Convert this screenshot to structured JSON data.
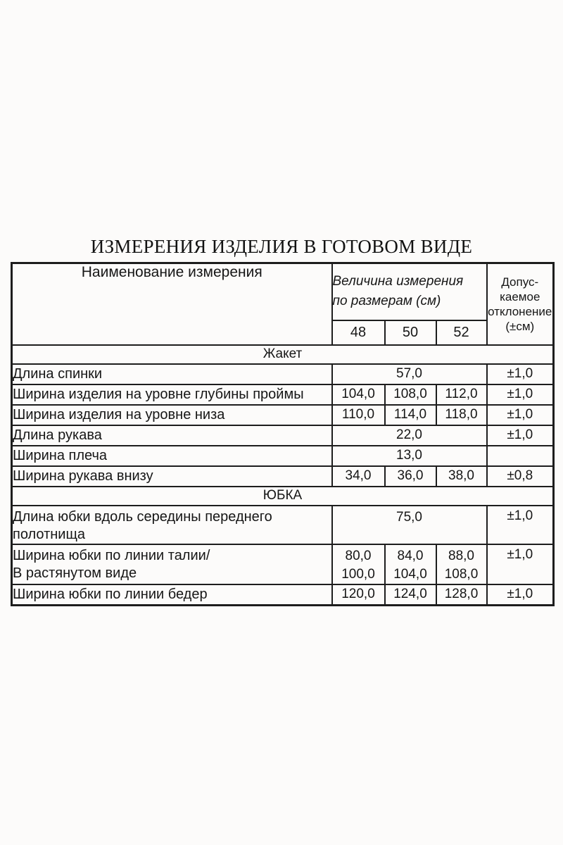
{
  "page": {
    "title": "ИЗМЕРЕНИЯ ИЗДЕЛИЯ В ГОТОВОМ ВИДЕ",
    "background_color": "#fcfbfa",
    "text_color": "#161616",
    "border_color": "#1d1d1d"
  },
  "table": {
    "header": {
      "name_label": "Наименование измерения",
      "group_label": "Величина измерения\nпо размерам (см)",
      "sizes": [
        "48",
        "50",
        "52"
      ],
      "tolerance_label": "Допус-\nкаемое\nотклонение\n(±см)"
    },
    "sections": [
      {
        "name": "Жакет",
        "rows": [
          {
            "label": "Длина спинки",
            "merged": "57,0",
            "tolerance": "±1,0"
          },
          {
            "label": "Ширина изделия на уровне глубины проймы",
            "values": [
              "104,0",
              "108,0",
              "112,0"
            ],
            "tolerance": "±1,0"
          },
          {
            "label": "Ширина изделия на уровне низа",
            "values": [
              "110,0",
              "114,0",
              "118,0"
            ],
            "tolerance": "±1,0"
          },
          {
            "label": "Длина рукава",
            "merged": "22,0",
            "tolerance": "±1,0"
          },
          {
            "label": "Ширина плеча",
            "merged": "13,0",
            "tolerance": ""
          },
          {
            "label": "Ширина рукава внизу",
            "values": [
              "34,0",
              "36,0",
              "38,0"
            ],
            "tolerance": "±0,8"
          }
        ]
      },
      {
        "name": "ЮБКА",
        "rows": [
          {
            "label": "Длина юбки вдоль середины переднего\nполотнища",
            "merged": "75,0",
            "tolerance": "±1,0"
          },
          {
            "label": "Ширина юбки по линии талии/\nВ растянутом виде",
            "values": [
              "80,0\n100,0",
              "84,0\n104,0",
              "88,0\n108,0"
            ],
            "tolerance": "±1,0"
          },
          {
            "label": "Ширина юбки по линии бедер",
            "values": [
              "120,0",
              "124,0",
              "128,0"
            ],
            "tolerance": "±1,0",
            "last": true
          }
        ]
      }
    ]
  }
}
